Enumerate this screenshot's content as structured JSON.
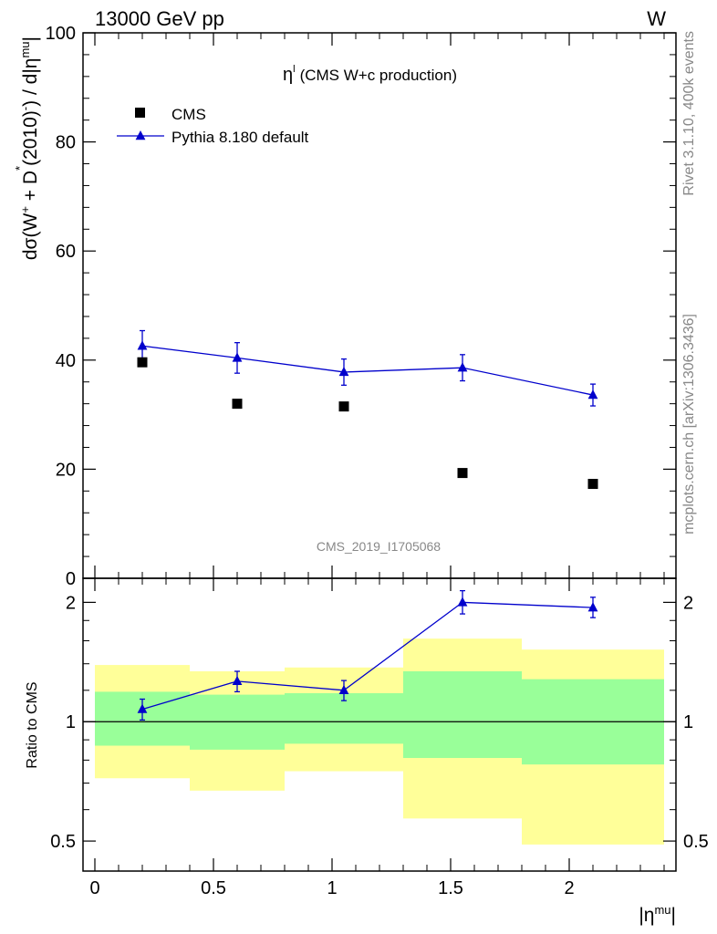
{
  "header": {
    "left": "13000 GeV pp",
    "right": "W"
  },
  "side_labels": {
    "top": "Rivet 3.1.10,  400k events",
    "bottom": "mcplots.cern.ch [arXiv:1306.3436]"
  },
  "analysis_id": "CMS_2019_I1705068",
  "chart_data": [
    {
      "type": "scatter",
      "panel": "main",
      "title": "ηˡ (CMS W+c production)",
      "title_parts": {
        "symbol": "η",
        "sup": "l",
        "text": "(CMS W+c production)"
      },
      "ylabel": "dσ(W⁺ + D*(2010)⁻) / d|ηᵐᵘ|",
      "ylim": [
        0,
        100
      ],
      "yticks": [
        0,
        20,
        40,
        60,
        80,
        100
      ],
      "xlim": [
        -0.05,
        2.45
      ],
      "legend_position": "top-left",
      "series": [
        {
          "name": "CMS",
          "marker": "square",
          "color": "#000000",
          "points": [
            {
              "x": 0.2,
              "y": 39.6
            },
            {
              "x": 0.6,
              "y": 32.0
            },
            {
              "x": 1.05,
              "y": 31.5
            },
            {
              "x": 1.55,
              "y": 19.3
            },
            {
              "x": 2.1,
              "y": 17.3
            }
          ]
        },
        {
          "name": "Pythia 8.180 default",
          "marker": "triangle",
          "color": "#0000cc",
          "line": true,
          "points": [
            {
              "x": 0.2,
              "y": 42.6,
              "err": 2.8
            },
            {
              "x": 0.6,
              "y": 40.4,
              "err": 2.8
            },
            {
              "x": 1.05,
              "y": 37.8,
              "err": 2.4
            },
            {
              "x": 1.55,
              "y": 38.6,
              "err": 2.4
            },
            {
              "x": 2.1,
              "y": 33.6,
              "err": 2.0
            }
          ]
        }
      ]
    },
    {
      "type": "line",
      "panel": "ratio",
      "ylabel": "Ratio to CMS",
      "xlabel": "|ηᵐᵘ|",
      "y_scale": "log",
      "ylim": [
        0.42,
        2.3
      ],
      "yticks": [
        0.5,
        1,
        2
      ],
      "xticks": [
        0,
        0.5,
        1,
        1.5,
        2
      ],
      "xlim": [
        -0.05,
        2.45
      ],
      "reference_line": 1,
      "bands": [
        {
          "x0": 0.0,
          "x1": 0.4,
          "yellow": [
            0.72,
            1.39
          ],
          "green": [
            0.87,
            1.19
          ]
        },
        {
          "x0": 0.4,
          "x1": 0.8,
          "yellow": [
            0.67,
            1.34
          ],
          "green": [
            0.85,
            1.17
          ]
        },
        {
          "x0": 0.8,
          "x1": 1.3,
          "yellow": [
            0.75,
            1.37
          ],
          "green": [
            0.88,
            1.18
          ]
        },
        {
          "x0": 1.3,
          "x1": 1.8,
          "yellow": [
            0.57,
            1.62
          ],
          "green": [
            0.81,
            1.34
          ]
        },
        {
          "x0": 1.8,
          "x1": 2.4,
          "yellow": [
            0.49,
            1.52
          ],
          "green": [
            0.78,
            1.28
          ]
        }
      ],
      "band_colors": {
        "yellow": "#ffff99",
        "green": "#99ff99"
      },
      "series": [
        {
          "name": "Pythia 8.180 default",
          "color": "#0000cc",
          "points": [
            {
              "x": 0.2,
              "y": 1.075,
              "lo": 1.01,
              "hi": 1.14
            },
            {
              "x": 0.6,
              "y": 1.265,
              "lo": 1.19,
              "hi": 1.34
            },
            {
              "x": 1.05,
              "y": 1.2,
              "lo": 1.13,
              "hi": 1.27
            },
            {
              "x": 1.55,
              "y": 2.0,
              "lo": 1.87,
              "hi": 2.14
            },
            {
              "x": 2.1,
              "y": 1.94,
              "lo": 1.83,
              "hi": 2.06
            }
          ]
        }
      ]
    }
  ]
}
